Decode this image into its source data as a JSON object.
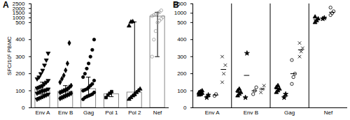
{
  "chart_data": [
    {
      "type": "bar",
      "title": "A",
      "y_label": "SFC/10⁶ PBMC",
      "categories": [
        "Env A",
        "Env B",
        "Gag",
        "Pol 1",
        "Pol 2",
        "Nef"
      ],
      "values": [
        110,
        95,
        110,
        80,
        90,
        1150
      ],
      "errors": [
        [
          80,
          150
        ],
        [
          75,
          130
        ],
        [
          75,
          180
        ],
        [
          65,
          90
        ],
        [
          70,
          570
        ],
        [
          300,
          1600
        ]
      ],
      "points": [
        [
          50,
          55,
          60,
          65,
          70,
          75,
          80,
          85,
          90,
          95,
          100,
          100,
          105,
          110,
          115,
          120,
          125,
          130,
          140,
          150,
          160,
          170,
          180,
          200,
          220,
          250,
          280,
          320
        ],
        [
          55,
          60,
          65,
          70,
          75,
          80,
          85,
          90,
          95,
          100,
          105,
          110,
          120,
          130,
          150,
          170,
          190,
          220,
          260,
          380
        ],
        [
          50,
          60,
          65,
          70,
          75,
          80,
          90,
          100,
          105,
          110,
          120,
          130,
          140,
          160,
          180,
          200,
          230,
          260,
          300,
          340,
          400
        ],
        [
          60,
          75,
          85,
          95
        ],
        [
          50,
          60,
          70,
          80,
          90,
          100,
          110,
          480,
          560,
          600
        ],
        [
          300,
          400,
          450,
          500,
          700,
          900,
          1100,
          1200,
          1300,
          1400,
          1500,
          1600,
          1800
        ]
      ],
      "markers": [
        "triangle-down",
        "diamond",
        "circle",
        "square",
        "triangle",
        "circle-open"
      ],
      "colors": [
        "#000000",
        "#000000",
        "#000000",
        "#000000",
        "#000000",
        "#999999"
      ],
      "color": "#888888",
      "ylim": [
        0,
        2500
      ],
      "yticks": [
        0,
        100,
        200,
        300,
        400,
        500,
        1000,
        1500,
        2000,
        2500
      ]
    },
    {
      "type": "scatter",
      "title": "B",
      "categories": [
        "Env A",
        "Env B",
        "Gag",
        "Nef"
      ],
      "series": [
        {
          "marker": "triangle",
          "color": "#000000",
          "values": [
            [
              75,
              80,
              85,
              90,
              95,
              100,
              85,
              78
            ],
            [
              70,
              80,
              90,
              100,
              110
            ],
            [
              90,
              100,
              110,
              120,
              130
            ],
            [
              500,
              600,
              700,
              800
            ]
          ],
          "means": [
            86,
            90,
            110,
            650
          ]
        },
        {
          "marker": "star",
          "color": "#000000",
          "values": [
            [
              60,
              75
            ],
            [
              60,
              320
            ],
            [
              60,
              80
            ],
            [
              700,
              750
            ]
          ],
          "means": [
            68,
            190,
            70,
            725
          ]
        },
        {
          "marker": "circle-open",
          "color": "#000000",
          "values": [
            [
              70,
              80
            ],
            [
              80,
              100,
              120
            ],
            [
              140,
              180,
              200,
              280
            ],
            [
              900,
              1000,
              1100,
              1300
            ]
          ],
          "means": [
            75,
            100,
            200,
            1050
          ]
        },
        {
          "marker": "times",
          "color": "#000000",
          "values": [
            [
              150,
              200,
              250,
              300
            ],
            [
              90,
              110,
              130
            ],
            [
              300,
              330,
              350,
              380
            ],
            []
          ],
          "means": [
            225,
            110,
            340,
            null
          ]
        }
      ],
      "ylim": [
        0,
        1500
      ],
      "yticks": [
        0,
        100,
        200,
        300,
        400,
        500,
        1000,
        1500
      ]
    }
  ]
}
